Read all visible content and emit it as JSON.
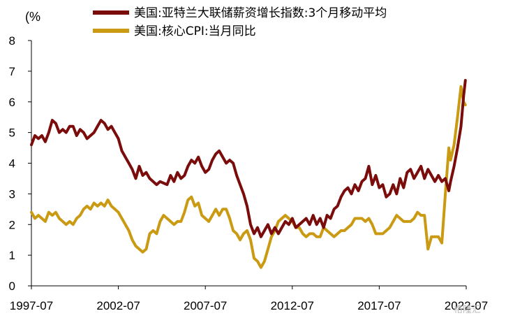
{
  "chart_data": {
    "type": "line",
    "title": "",
    "ylabel": "(%",
    "xlabel": "",
    "ylim": [
      0,
      8
    ],
    "yticks": [
      0,
      1,
      2,
      3,
      4,
      5,
      6,
      7,
      8
    ],
    "xlim": [
      1997.5,
      2022.5
    ],
    "xticks": [
      {
        "value": 1997.5,
        "label": "1997-07"
      },
      {
        "value": 2002.5,
        "label": "2002-07"
      },
      {
        "value": 2007.5,
        "label": "2007-07"
      },
      {
        "value": 2012.5,
        "label": "2012-07"
      },
      {
        "value": 2017.5,
        "label": "2017-07"
      },
      {
        "value": 2022.5,
        "label": "2022-07"
      }
    ],
    "grid": false,
    "legend_position": "top",
    "watermark": "格隆汇",
    "series": [
      {
        "name": "美国:亚特兰大联储薪资增长指数:3个月移动平均",
        "color": "#7b0c0c",
        "points": [
          [
            1997.5,
            4.6
          ],
          [
            1997.7,
            4.9
          ],
          [
            1997.9,
            4.8
          ],
          [
            1998.1,
            4.9
          ],
          [
            1998.3,
            4.7
          ],
          [
            1998.5,
            5.0
          ],
          [
            1998.7,
            5.4
          ],
          [
            1998.9,
            5.3
          ],
          [
            1999.1,
            5.0
          ],
          [
            1999.3,
            5.1
          ],
          [
            1999.5,
            5.0
          ],
          [
            1999.7,
            5.2
          ],
          [
            1999.9,
            5.2
          ],
          [
            2000.1,
            4.9
          ],
          [
            2000.3,
            5.1
          ],
          [
            2000.5,
            5.0
          ],
          [
            2000.7,
            4.8
          ],
          [
            2000.9,
            4.9
          ],
          [
            2001.1,
            5.0
          ],
          [
            2001.3,
            5.2
          ],
          [
            2001.5,
            5.4
          ],
          [
            2001.7,
            5.3
          ],
          [
            2001.9,
            5.1
          ],
          [
            2002.1,
            5.2
          ],
          [
            2002.3,
            5.0
          ],
          [
            2002.5,
            4.8
          ],
          [
            2002.7,
            4.4
          ],
          [
            2002.9,
            4.2
          ],
          [
            2003.1,
            4.0
          ],
          [
            2003.3,
            3.8
          ],
          [
            2003.5,
            3.5
          ],
          [
            2003.7,
            3.9
          ],
          [
            2003.9,
            3.6
          ],
          [
            2004.1,
            3.7
          ],
          [
            2004.3,
            3.5
          ],
          [
            2004.5,
            3.4
          ],
          [
            2004.7,
            3.3
          ],
          [
            2004.9,
            3.4
          ],
          [
            2005.1,
            3.35
          ],
          [
            2005.3,
            3.3
          ],
          [
            2005.5,
            3.6
          ],
          [
            2005.7,
            3.4
          ],
          [
            2005.9,
            3.7
          ],
          [
            2006.1,
            3.5
          ],
          [
            2006.3,
            3.6
          ],
          [
            2006.5,
            3.9
          ],
          [
            2006.7,
            4.1
          ],
          [
            2006.9,
            4.0
          ],
          [
            2007.1,
            4.2
          ],
          [
            2007.3,
            3.9
          ],
          [
            2007.5,
            3.7
          ],
          [
            2007.7,
            3.8
          ],
          [
            2007.9,
            4.1
          ],
          [
            2008.1,
            4.3
          ],
          [
            2008.3,
            4.4
          ],
          [
            2008.5,
            4.2
          ],
          [
            2008.7,
            4.0
          ],
          [
            2008.9,
            4.1
          ],
          [
            2009.1,
            4.0
          ],
          [
            2009.3,
            3.6
          ],
          [
            2009.5,
            3.3
          ],
          [
            2009.7,
            3.0
          ],
          [
            2009.9,
            2.6
          ],
          [
            2010.1,
            2.0
          ],
          [
            2010.3,
            1.7
          ],
          [
            2010.5,
            1.9
          ],
          [
            2010.7,
            1.6
          ],
          [
            2010.9,
            1.8
          ],
          [
            2011.1,
            2.0
          ],
          [
            2011.3,
            1.7
          ],
          [
            2011.5,
            1.9
          ],
          [
            2011.7,
            1.7
          ],
          [
            2011.9,
            1.9
          ],
          [
            2012.1,
            2.1
          ],
          [
            2012.3,
            2.0
          ],
          [
            2012.5,
            2.2
          ],
          [
            2012.7,
            1.9
          ],
          [
            2012.9,
            2.0
          ],
          [
            2013.1,
            2.1
          ],
          [
            2013.3,
            2.2
          ],
          [
            2013.5,
            2.0
          ],
          [
            2013.7,
            2.3
          ],
          [
            2013.9,
            2.0
          ],
          [
            2014.1,
            2.2
          ],
          [
            2014.3,
            1.9
          ],
          [
            2014.5,
            2.3
          ],
          [
            2014.7,
            2.2
          ],
          [
            2014.9,
            2.5
          ],
          [
            2015.1,
            2.6
          ],
          [
            2015.3,
            2.9
          ],
          [
            2015.5,
            3.1
          ],
          [
            2015.7,
            3.2
          ],
          [
            2015.9,
            3.0
          ],
          [
            2016.1,
            3.3
          ],
          [
            2016.3,
            3.1
          ],
          [
            2016.5,
            3.4
          ],
          [
            2016.7,
            3.5
          ],
          [
            2016.9,
            3.9
          ],
          [
            2017.1,
            3.3
          ],
          [
            2017.3,
            3.6
          ],
          [
            2017.5,
            3.2
          ],
          [
            2017.7,
            3.3
          ],
          [
            2017.9,
            2.9
          ],
          [
            2018.1,
            3.0
          ],
          [
            2018.3,
            3.3
          ],
          [
            2018.5,
            3.0
          ],
          [
            2018.7,
            3.5
          ],
          [
            2018.9,
            3.2
          ],
          [
            2019.1,
            3.7
          ],
          [
            2019.3,
            3.8
          ],
          [
            2019.5,
            3.5
          ],
          [
            2019.7,
            3.7
          ],
          [
            2019.9,
            3.9
          ],
          [
            2020.1,
            3.5
          ],
          [
            2020.3,
            3.8
          ],
          [
            2020.5,
            3.6
          ],
          [
            2020.7,
            3.4
          ],
          [
            2020.9,
            3.6
          ],
          [
            2021.1,
            3.4
          ],
          [
            2021.3,
            3.5
          ],
          [
            2021.5,
            3.1
          ],
          [
            2021.6,
            3.4
          ],
          [
            2021.8,
            3.9
          ],
          [
            2022.0,
            4.5
          ],
          [
            2022.2,
            5.2
          ],
          [
            2022.35,
            6.2
          ],
          [
            2022.45,
            6.7
          ]
        ]
      },
      {
        "name": "美国:核心CPI:当月同比",
        "color": "#c99a12",
        "points": [
          [
            1997.5,
            2.4
          ],
          [
            1997.7,
            2.2
          ],
          [
            1997.9,
            2.3
          ],
          [
            1998.1,
            2.2
          ],
          [
            1998.3,
            2.1
          ],
          [
            1998.5,
            2.4
          ],
          [
            1998.7,
            2.3
          ],
          [
            1998.9,
            2.4
          ],
          [
            1999.1,
            2.2
          ],
          [
            1999.3,
            2.1
          ],
          [
            1999.5,
            2.0
          ],
          [
            1999.7,
            2.1
          ],
          [
            1999.9,
            2.0
          ],
          [
            2000.1,
            2.2
          ],
          [
            2000.3,
            2.3
          ],
          [
            2000.5,
            2.5
          ],
          [
            2000.7,
            2.6
          ],
          [
            2000.9,
            2.5
          ],
          [
            2001.1,
            2.7
          ],
          [
            2001.3,
            2.6
          ],
          [
            2001.5,
            2.7
          ],
          [
            2001.7,
            2.6
          ],
          [
            2001.9,
            2.8
          ],
          [
            2002.1,
            2.6
          ],
          [
            2002.3,
            2.5
          ],
          [
            2002.5,
            2.4
          ],
          [
            2002.7,
            2.2
          ],
          [
            2002.9,
            2.0
          ],
          [
            2003.1,
            1.8
          ],
          [
            2003.3,
            1.5
          ],
          [
            2003.5,
            1.3
          ],
          [
            2003.7,
            1.2
          ],
          [
            2003.9,
            1.1
          ],
          [
            2004.1,
            1.2
          ],
          [
            2004.3,
            1.7
          ],
          [
            2004.5,
            1.8
          ],
          [
            2004.7,
            1.7
          ],
          [
            2004.9,
            2.1
          ],
          [
            2005.1,
            2.3
          ],
          [
            2005.3,
            2.2
          ],
          [
            2005.5,
            2.1
          ],
          [
            2005.7,
            2.0
          ],
          [
            2005.9,
            2.1
          ],
          [
            2006.1,
            2.1
          ],
          [
            2006.3,
            2.4
          ],
          [
            2006.5,
            2.8
          ],
          [
            2006.7,
            2.9
          ],
          [
            2006.9,
            2.6
          ],
          [
            2007.1,
            2.7
          ],
          [
            2007.3,
            2.3
          ],
          [
            2007.5,
            2.2
          ],
          [
            2007.7,
            2.1
          ],
          [
            2007.9,
            2.3
          ],
          [
            2008.1,
            2.5
          ],
          [
            2008.3,
            2.3
          ],
          [
            2008.5,
            2.5
          ],
          [
            2008.7,
            2.5
          ],
          [
            2008.9,
            2.2
          ],
          [
            2009.1,
            1.8
          ],
          [
            2009.3,
            1.7
          ],
          [
            2009.5,
            1.5
          ],
          [
            2009.7,
            1.7
          ],
          [
            2009.9,
            1.8
          ],
          [
            2010.1,
            1.5
          ],
          [
            2010.3,
            0.9
          ],
          [
            2010.5,
            0.8
          ],
          [
            2010.7,
            0.6
          ],
          [
            2010.9,
            0.8
          ],
          [
            2011.1,
            1.2
          ],
          [
            2011.3,
            1.6
          ],
          [
            2011.5,
            1.8
          ],
          [
            2011.7,
            2.1
          ],
          [
            2011.9,
            2.2
          ],
          [
            2012.1,
            2.3
          ],
          [
            2012.3,
            2.2
          ],
          [
            2012.5,
            2.1
          ],
          [
            2012.7,
            1.9
          ],
          [
            2012.9,
            1.9
          ],
          [
            2013.1,
            1.7
          ],
          [
            2013.3,
            1.6
          ],
          [
            2013.5,
            1.7
          ],
          [
            2013.7,
            1.7
          ],
          [
            2013.9,
            1.6
          ],
          [
            2014.1,
            1.6
          ],
          [
            2014.3,
            1.9
          ],
          [
            2014.5,
            1.8
          ],
          [
            2014.7,
            1.7
          ],
          [
            2014.9,
            1.6
          ],
          [
            2015.1,
            1.7
          ],
          [
            2015.3,
            1.8
          ],
          [
            2015.5,
            1.8
          ],
          [
            2015.7,
            1.9
          ],
          [
            2015.9,
            2.0
          ],
          [
            2016.1,
            2.2
          ],
          [
            2016.3,
            2.2
          ],
          [
            2016.5,
            2.2
          ],
          [
            2016.7,
            2.1
          ],
          [
            2016.9,
            2.2
          ],
          [
            2017.1,
            2.0
          ],
          [
            2017.3,
            1.7
          ],
          [
            2017.5,
            1.7
          ],
          [
            2017.7,
            1.7
          ],
          [
            2017.9,
            1.8
          ],
          [
            2018.1,
            1.9
          ],
          [
            2018.3,
            2.1
          ],
          [
            2018.5,
            2.3
          ],
          [
            2018.7,
            2.2
          ],
          [
            2018.9,
            2.1
          ],
          [
            2019.1,
            2.1
          ],
          [
            2019.3,
            2.1
          ],
          [
            2019.5,
            2.2
          ],
          [
            2019.7,
            2.4
          ],
          [
            2019.9,
            2.3
          ],
          [
            2020.1,
            2.3
          ],
          [
            2020.3,
            1.2
          ],
          [
            2020.5,
            1.6
          ],
          [
            2020.7,
            1.6
          ],
          [
            2020.9,
            1.6
          ],
          [
            2021.1,
            1.4
          ],
          [
            2021.3,
            3.0
          ],
          [
            2021.5,
            4.5
          ],
          [
            2021.6,
            4.1
          ],
          [
            2021.8,
            4.6
          ],
          [
            2022.0,
            5.5
          ],
          [
            2022.2,
            6.5
          ],
          [
            2022.35,
            6.0
          ],
          [
            2022.45,
            5.9
          ]
        ]
      }
    ]
  }
}
